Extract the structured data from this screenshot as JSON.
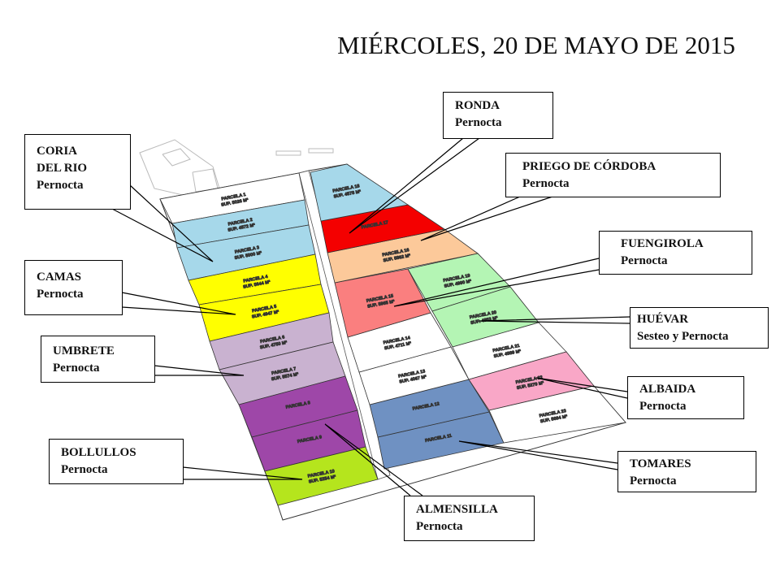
{
  "title": "MIÉRCOLES, 20 DE MAYO DE 2015",
  "parcels": [
    {
      "name": "PARCELA 1",
      "sup": "SUP. 5026 M²",
      "color": "#ffffff"
    },
    {
      "name": "PARCELA 2",
      "sup": "SUP. 4872 M²",
      "color": "#a6d8ea"
    },
    {
      "name": "PARCELA 3",
      "sup": "SUP. 5000 M²",
      "color": "#a6d8ea"
    },
    {
      "name": "PARCELA 4",
      "sup": "SUP. 5644 M²",
      "color": "#ffff00"
    },
    {
      "name": "PARCELA 5",
      "sup": "SUP. 4947 M²",
      "color": "#ffff00"
    },
    {
      "name": "PARCELA 6",
      "sup": "SUP. 4750 M²",
      "color": "#c9b2d0"
    },
    {
      "name": "PARCELA 7",
      "sup": "SUP. 5574 M²",
      "color": "#c9b2d0"
    },
    {
      "name": "PARCELA 8",
      "sup": "",
      "color": "#9e47a8"
    },
    {
      "name": "PARCELA 9",
      "sup": "",
      "color": "#9e47a8"
    },
    {
      "name": "PARCELA 10",
      "sup": "SUP. 5254 M²",
      "color": "#b5e51d"
    },
    {
      "name": "PARCELA 11",
      "sup": "",
      "color": "#6f91c2"
    },
    {
      "name": "PARCELA 12",
      "sup": "",
      "color": "#6f91c2"
    },
    {
      "name": "PARCELA 13",
      "sup": "SUP. 4067 M²",
      "color": "#ffffff"
    },
    {
      "name": "PARCELA 14",
      "sup": "SUP. 4711 M²",
      "color": "#ffffff"
    },
    {
      "name": "PARCELA 15",
      "sup": "SUP. 5965 M²",
      "color": "#fa7f7f"
    },
    {
      "name": "PARCELA 16",
      "sup": "SUP. 5862 M²",
      "color": "#fcc99a"
    },
    {
      "name": "PARCELA 17",
      "sup": "",
      "color": "#f40000"
    },
    {
      "name": "PARCELA 18",
      "sup": "SUP. 4578 M²",
      "color": "#a6d8ea"
    },
    {
      "name": "PARCELA 19",
      "sup": "SUP. 4990 M²",
      "color": "#b4f5b4"
    },
    {
      "name": "PARCELA 20",
      "sup": "SUP. 4853 M²",
      "color": "#b4f5b4"
    },
    {
      "name": "PARCELA 21",
      "sup": "SUP. 4889 M²",
      "color": "#ffffff"
    },
    {
      "name": "PARCELA 22",
      "sup": "SUP. 5279 M²",
      "color": "#f9a7c7"
    },
    {
      "name": "PARCELA 23",
      "sup": "SUP. 5684 M²",
      "color": "#ffffff"
    }
  ],
  "callouts": {
    "coria": {
      "line1": "CORIA",
      "line2": "DEL RIO",
      "line3": "Pernocta"
    },
    "camas": {
      "line1": "CAMAS",
      "line2": "Pernocta"
    },
    "umbrete": {
      "line1": "UMBRETE",
      "line2": "Pernocta"
    },
    "bollullos": {
      "line1": "BOLLULLOS",
      "line2": "Pernocta"
    },
    "almensilla": {
      "line1": "ALMENSILLA",
      "line2": "Pernocta"
    },
    "ronda": {
      "line1": "RONDA",
      "line2": "Pernocta"
    },
    "priego": {
      "line1": "PRIEGO DE CÓRDOBA",
      "line2": "Pernocta"
    },
    "fuengirola": {
      "line1": "FUENGIROLA",
      "line2": "Pernocta"
    },
    "huevar": {
      "line1": "HUÉVAR",
      "line2": "Sesteo y Pernocta"
    },
    "albaida": {
      "line1": "ALBAIDA",
      "line2": "Pernocta"
    },
    "tomares": {
      "line1": "TOMARES",
      "line2": "Pernocta"
    }
  }
}
